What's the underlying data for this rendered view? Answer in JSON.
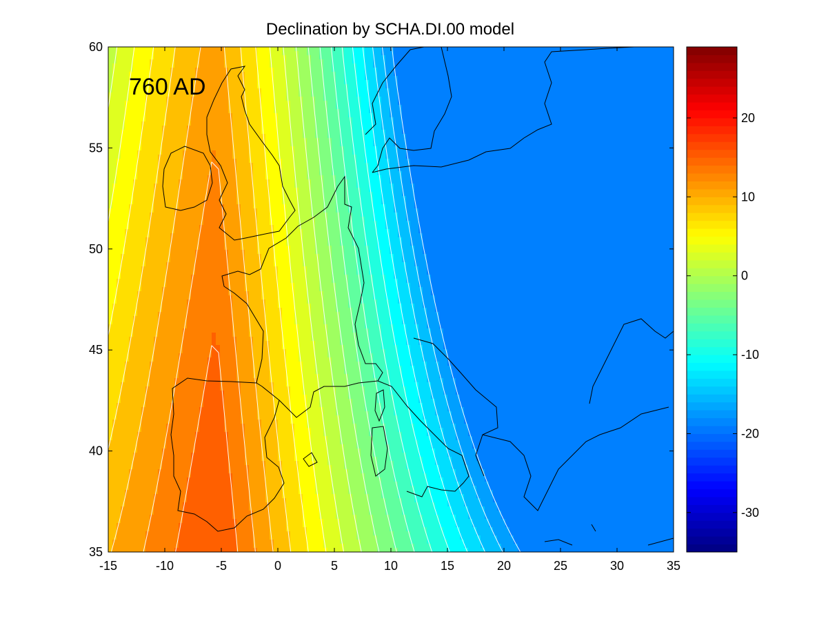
{
  "chart_data": {
    "type": "heatmap",
    "title": "Declination by SCHA.DI.00 model",
    "annotation": "760 AD",
    "xlim": [
      -15,
      35
    ],
    "ylim": [
      35,
      60
    ],
    "x_ticks": [
      -15,
      -10,
      -5,
      0,
      5,
      10,
      15,
      20,
      25,
      30,
      35
    ],
    "y_ticks": [
      35,
      40,
      45,
      50,
      55,
      60
    ],
    "colorbar": {
      "range": [
        -35,
        29
      ],
      "ticks": [
        -30,
        -20,
        -10,
        0,
        10,
        20
      ],
      "colormap": "jet",
      "placement": "right"
    },
    "contour_levels": [
      -18,
      -16,
      -14,
      -12,
      -10,
      -8,
      -6,
      -4,
      -2,
      0,
      2,
      4,
      6,
      8,
      10,
      12,
      14
    ],
    "field_model": {
      "center_lon": -5.5,
      "lat_peak": 35,
      "peak_value": 16.5,
      "gradient_per_deg_lon": 1.28,
      "curvature": 0.0058,
      "min_value": -19
    },
    "grid": false,
    "coastlines": true
  }
}
